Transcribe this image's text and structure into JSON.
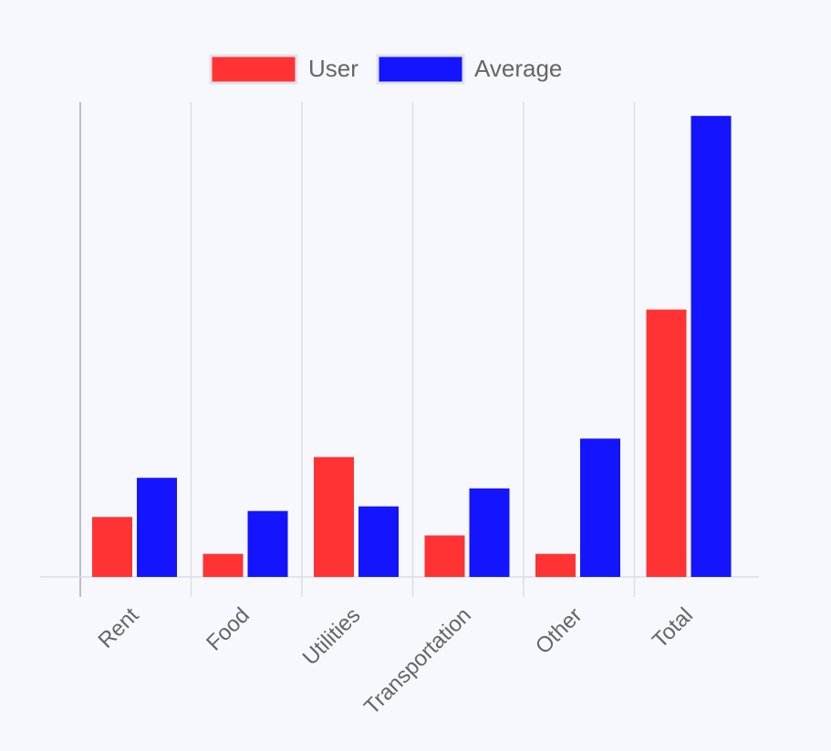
{
  "chart_data": {
    "type": "bar",
    "categories": [
      "Rent",
      "Food",
      "Utilities",
      "Transportation",
      "Other",
      "Total"
    ],
    "series": [
      {
        "name": "User",
        "color": "#ff3333",
        "values": [
          13,
          5,
          26,
          9,
          5,
          58
        ]
      },
      {
        "name": "Average",
        "color": "#1414ff",
        "values": [
          21.5,
          14.3,
          15.3,
          19.2,
          30,
          100
        ]
      }
    ],
    "ylim": [
      0,
      103
    ],
    "y_axis_visible": false,
    "vertical_grid": true,
    "horizontal_grid": false,
    "legend_position": "top-center",
    "title": "",
    "xlabel": "",
    "ylabel": ""
  },
  "colors": {
    "background": "#f6f8fd",
    "grid": "#dcdde3",
    "axis": "#bdbdc2",
    "text": "#666666"
  }
}
